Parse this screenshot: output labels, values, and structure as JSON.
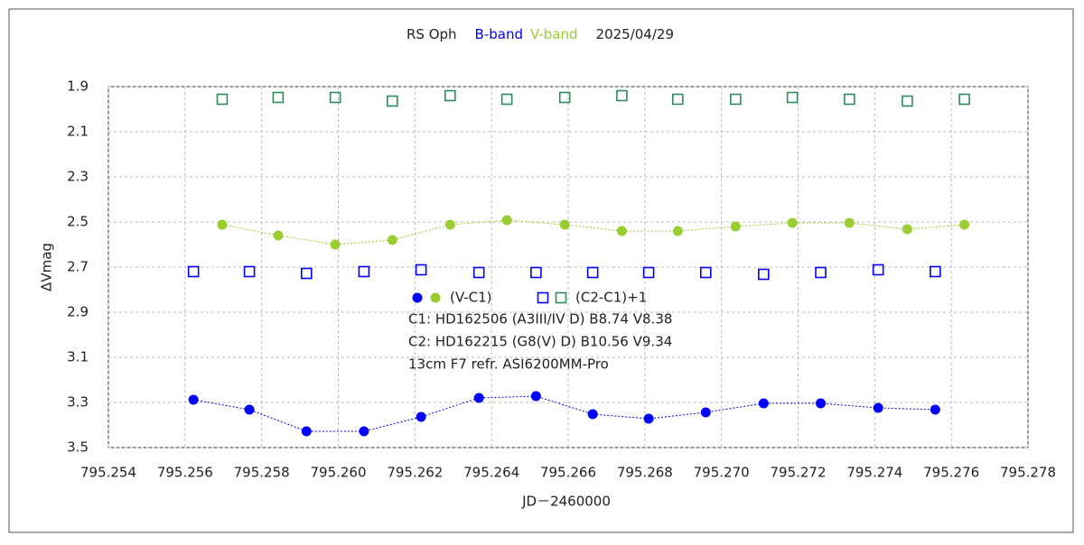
{
  "chart_data": {
    "type": "scatter",
    "title": "RS Oph",
    "bands": [
      {
        "name": "B-band",
        "color": "#0000ff"
      },
      {
        "name": "V-band",
        "color": "#9acd32"
      }
    ],
    "date": "2025/04/29",
    "x_label": "JD－2460000",
    "y_label": "ΔVmag",
    "xlim": [
      795.254,
      795.278
    ],
    "xticks": [
      795.254,
      795.256,
      795.258,
      {
        "value": 795.26,
        "label": "795.260"
      },
      795.262,
      795.264,
      795.266,
      795.268,
      {
        "value": 795.27,
        "label": "795.270"
      },
      795.272,
      795.274,
      795.276,
      795.278
    ],
    "ylim": [
      1.9,
      3.5
    ],
    "y_inverted": true,
    "yticks": [
      1.9,
      2.1,
      2.3,
      2.5,
      2.7,
      2.9,
      3.1,
      3.3,
      3.5
    ],
    "grid": true,
    "series": [
      {
        "color": "#0000ff",
        "marker": "circle",
        "line": true,
        "x": [
          795.25622,
          795.25768,
          795.25917,
          795.26067,
          795.26216,
          795.26367,
          795.26516,
          795.26664,
          795.2681,
          795.26959,
          795.2711,
          795.27259,
          795.27409,
          795.27558
        ],
        "values": [
          3.288,
          3.332,
          3.428,
          3.428,
          3.364,
          3.28,
          3.272,
          3.352,
          3.372,
          3.344,
          3.304,
          3.304,
          3.324,
          3.332
        ]
      },
      {
        "color": "#9acd32",
        "marker": "circle",
        "line": true,
        "x": [
          795.25697,
          795.25843,
          795.25992,
          795.26141,
          795.26292,
          795.2644,
          795.26591,
          795.2674,
          795.26886,
          795.27037,
          795.27185,
          795.27334,
          795.27485,
          795.27634
        ],
        "values": [
          2.512,
          2.56,
          2.6,
          2.58,
          2.512,
          2.492,
          2.512,
          2.54,
          2.54,
          2.52,
          2.504,
          2.504,
          2.532,
          2.512
        ]
      },
      {
        "color": "#0000ff",
        "marker": "square",
        "line": false,
        "x": [
          795.25622,
          795.25768,
          795.25917,
          795.26067,
          795.26216,
          795.26367,
          795.26516,
          795.26664,
          795.2681,
          795.26959,
          795.2711,
          795.27259,
          795.27409,
          795.27558
        ],
        "values": [
          2.72,
          2.72,
          2.728,
          2.72,
          2.712,
          2.724,
          2.724,
          2.724,
          2.724,
          2.724,
          2.732,
          2.724,
          2.712,
          2.72
        ]
      },
      {
        "color": "#2e8b57",
        "marker": "square",
        "line": false,
        "x": [
          795.25697,
          795.25843,
          795.25992,
          795.26141,
          795.26292,
          795.2644,
          795.26591,
          795.2674,
          795.26886,
          795.27037,
          795.27185,
          795.27334,
          795.27485,
          795.27634
        ],
        "values": [
          1.956,
          1.948,
          1.948,
          1.964,
          1.94,
          1.956,
          1.948,
          1.94,
          1.956,
          1.956,
          1.948,
          1.956,
          1.964,
          1.956
        ]
      }
    ],
    "legend": [
      "(V-C1)",
      "(C2-C1)+1"
    ],
    "annotations": [
      "C1: HD162506 (A3III/IV  D)   B8.74   V8.38",
      "C2: HD162215 (G8(V)  D)   B10.56   V9.34",
      "13cm F7 refr.    ASI6200MM-Pro"
    ]
  }
}
